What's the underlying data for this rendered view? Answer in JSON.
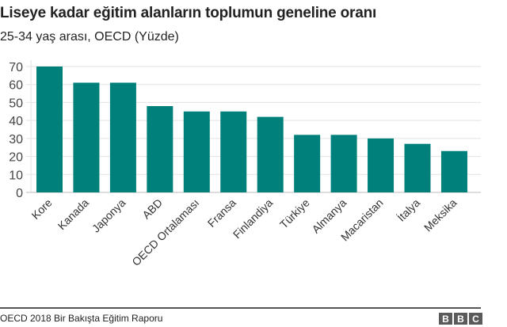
{
  "header": {
    "title": "Liseye kadar eğitim alanların toplumun geneline oranı",
    "subtitle": "25-34 yaş arası, OECD (Yüzde)"
  },
  "footer": {
    "source": "OECD 2018 Bir Bakışta Eğitim Raporu",
    "logo_letters": [
      "B",
      "B",
      "C"
    ]
  },
  "colors": {
    "bar": "#00807a",
    "grid": "#e2e2e2",
    "axis": "#cccccc",
    "text": "#222222",
    "tick_text": "#444444"
  },
  "chart_data": {
    "type": "bar",
    "title": "Liseye kadar eğitim alanların toplumun geneline oranı",
    "subtitle": "25-34 yaş arası, OECD (Yüzde)",
    "xlabel": "",
    "ylabel": "",
    "categories": [
      "Kore",
      "Kanada",
      "Japonya",
      "ABD",
      "OECD Ortalaması",
      "Fransa",
      "Finlandiya",
      "Türkiye",
      "Almanya",
      "Macaristan",
      "İtalya",
      "Meksika"
    ],
    "values": [
      70,
      61,
      61,
      48,
      45,
      45,
      42,
      32,
      32,
      30,
      27,
      23
    ],
    "ylim": [
      0,
      70
    ],
    "yticks": [
      0,
      10,
      20,
      30,
      40,
      50,
      60,
      70
    ],
    "grid": true,
    "legend": null,
    "x_label_rotation": -45,
    "source": "OECD 2018 Bir Bakışta Eğitim Raporu"
  }
}
